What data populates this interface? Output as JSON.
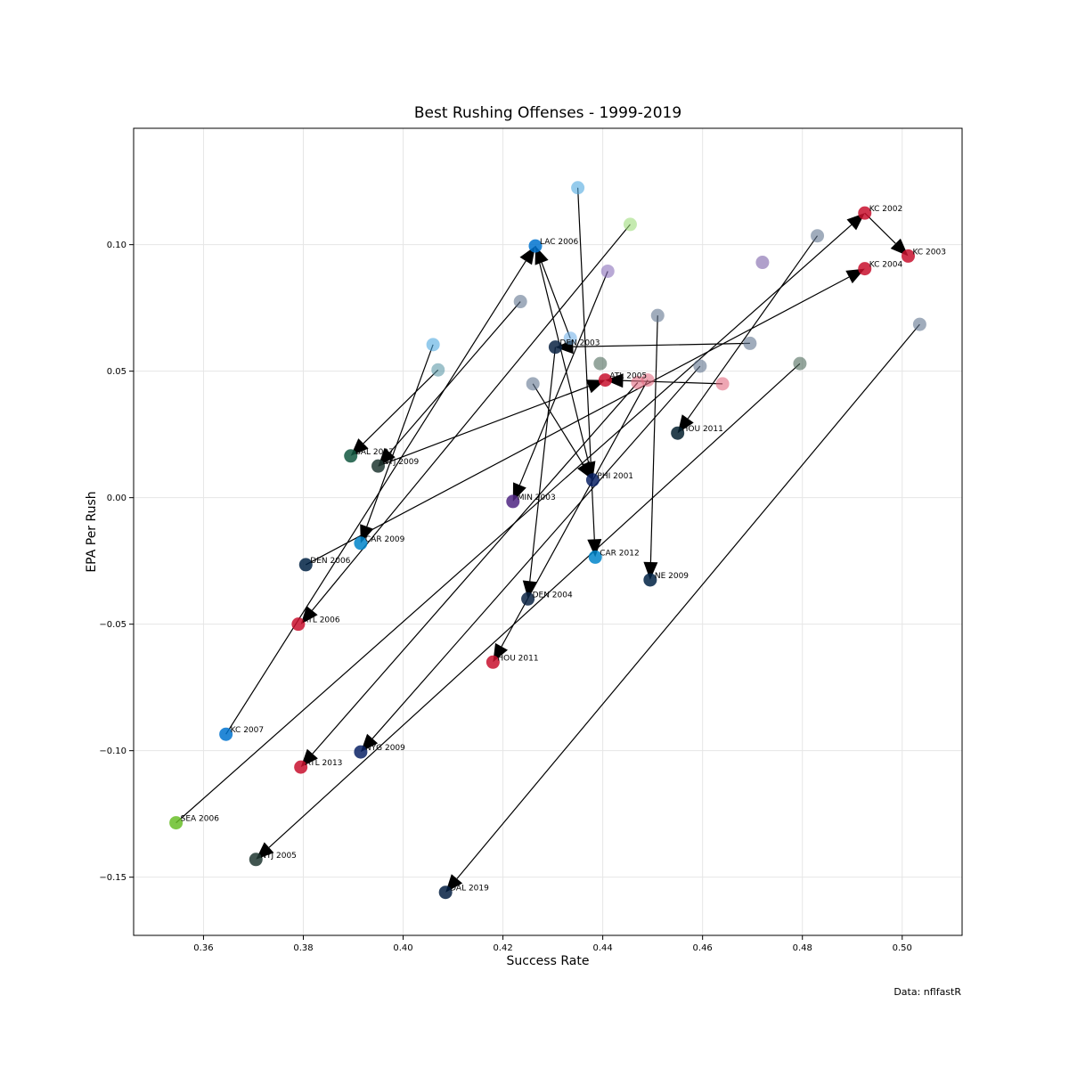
{
  "chart_data": {
    "type": "scatter",
    "title": "Best Rushing Offenses - 1999-2019",
    "xlabel": "Success Rate",
    "ylabel": "EPA Per Rush",
    "caption": "Data: nflfastR",
    "xlim": [
      0.346,
      0.512
    ],
    "ylim": [
      -0.173,
      0.146
    ],
    "xticks": [
      0.36,
      0.38,
      0.4,
      0.42,
      0.44,
      0.46,
      0.48,
      0.5
    ],
    "xtick_labels": [
      "0.36",
      "0.38",
      "0.40",
      "0.42",
      "0.44",
      "0.46",
      "0.48",
      "0.50"
    ],
    "yticks": [
      0.1,
      0.05,
      0.0,
      -0.05,
      -0.1,
      -0.15
    ],
    "ytick_labels": [
      "0.10",
      "0.05",
      "0.00",
      "−0.05",
      "−0.10",
      "−0.15"
    ],
    "grid": true,
    "points": [
      {
        "label": "KC 2002",
        "x": 0.4925,
        "y": 0.1125,
        "color": "#c8102e"
      },
      {
        "label": "KC 2003",
        "x": 0.5012,
        "y": 0.0955,
        "color": "#c8102e"
      },
      {
        "label": "KC 2004",
        "x": 0.4925,
        "y": 0.0905,
        "color": "#c8102e"
      },
      {
        "label": "LAC 2006",
        "x": 0.4265,
        "y": 0.0995,
        "color": "#0073cf"
      },
      {
        "label": "DEN 2003",
        "x": 0.4305,
        "y": 0.0595,
        "color": "#0a2343"
      },
      {
        "label": "ATL 2005",
        "x": 0.4405,
        "y": 0.0465,
        "color": "#c8102e"
      },
      {
        "label": "HOU 2011",
        "x": 0.455,
        "y": 0.0255,
        "color": "#03202f"
      },
      {
        "label": "BAL 2007",
        "x": 0.3895,
        "y": 0.0165,
        "color": "#125740"
      },
      {
        "label": "NYJ 2009",
        "x": 0.395,
        "y": 0.0125,
        "color": "#203731"
      },
      {
        "label": "PHI 2001",
        "x": 0.438,
        "y": 0.007,
        "color": "#0b2265"
      },
      {
        "label": "MIN 2003",
        "x": 0.422,
        "y": -0.0015,
        "color": "#4f2683"
      },
      {
        "label": "CAR 2009",
        "x": 0.3915,
        "y": -0.018,
        "color": "#0085ca"
      },
      {
        "label": "CAR 2012",
        "x": 0.4385,
        "y": -0.0235,
        "color": "#0085ca"
      },
      {
        "label": "DEN 2006",
        "x": 0.3805,
        "y": -0.0265,
        "color": "#002244"
      },
      {
        "label": "NE 2009",
        "x": 0.4495,
        "y": -0.0325,
        "color": "#002244"
      },
      {
        "label": "DEN 2004",
        "x": 0.425,
        "y": -0.04,
        "color": "#0a2343"
      },
      {
        "label": "ATL 2006",
        "x": 0.379,
        "y": -0.05,
        "color": "#c8102e"
      },
      {
        "label": "HOU 2011",
        "x": 0.418,
        "y": -0.065,
        "color": "#c8102e"
      },
      {
        "label": "KC 2007",
        "x": 0.3645,
        "y": -0.0935,
        "color": "#0073cf"
      },
      {
        "label": "NYG 2009",
        "x": 0.3915,
        "y": -0.1005,
        "color": "#0b2265"
      },
      {
        "label": "ATL 2013",
        "x": 0.3795,
        "y": -0.1065,
        "color": "#c8102e"
      },
      {
        "label": "SEA 2006",
        "x": 0.3545,
        "y": -0.1285,
        "color": "#69be28"
      },
      {
        "label": "NYJ 2005",
        "x": 0.3705,
        "y": -0.143,
        "color": "#203731"
      },
      {
        "label": "DAL 2019",
        "x": 0.4085,
        "y": -0.156,
        "color": "#041e42"
      },
      {
        "label": "",
        "x": 0.435,
        "y": 0.1225,
        "color": "#4fa8e0"
      },
      {
        "label": "",
        "x": 0.4455,
        "y": 0.108,
        "color": "#9fdc7c"
      },
      {
        "label": "",
        "x": 0.483,
        "y": 0.1035,
        "color": "#607590"
      },
      {
        "label": "",
        "x": 0.472,
        "y": 0.093,
        "color": "#7b61a8"
      },
      {
        "label": "",
        "x": 0.441,
        "y": 0.0895,
        "color": "#8a6fba"
      },
      {
        "label": "",
        "x": 0.4235,
        "y": 0.0775,
        "color": "#607590"
      },
      {
        "label": "",
        "x": 0.451,
        "y": 0.072,
        "color": "#607590"
      },
      {
        "label": "",
        "x": 0.5035,
        "y": 0.0685,
        "color": "#607590"
      },
      {
        "label": "",
        "x": 0.4335,
        "y": 0.063,
        "color": "#74b3e8"
      },
      {
        "label": "",
        "x": 0.4695,
        "y": 0.061,
        "color": "#607590"
      },
      {
        "label": "",
        "x": 0.406,
        "y": 0.0605,
        "color": "#4fa8e0"
      },
      {
        "label": "",
        "x": 0.4395,
        "y": 0.053,
        "color": "#4f6b5c"
      },
      {
        "label": "",
        "x": 0.4795,
        "y": 0.053,
        "color": "#4f6b5c"
      },
      {
        "label": "",
        "x": 0.4595,
        "y": 0.052,
        "color": "#607590"
      },
      {
        "label": "",
        "x": 0.407,
        "y": 0.0505,
        "color": "#5e99a8"
      },
      {
        "label": "",
        "x": 0.447,
        "y": 0.0455,
        "color": "#e36a80"
      },
      {
        "label": "",
        "x": 0.449,
        "y": 0.0465,
        "color": "#e36a80"
      },
      {
        "label": "",
        "x": 0.464,
        "y": 0.045,
        "color": "#e36a80"
      },
      {
        "label": "",
        "x": 0.426,
        "y": 0.045,
        "color": "#607590"
      }
    ],
    "arrows": [
      {
        "x1": 0.435,
        "y1": 0.1225,
        "x2": 0.4385,
        "y2": -0.0235
      },
      {
        "x1": 0.4455,
        "y1": 0.108,
        "x2": 0.3795,
        "y2": -0.05
      },
      {
        "x1": 0.483,
        "y1": 0.1035,
        "x2": 0.455,
        "y2": 0.0255
      },
      {
        "x1": 0.441,
        "y1": 0.0895,
        "x2": 0.422,
        "y2": -0.0015
      },
      {
        "x1": 0.4235,
        "y1": 0.0775,
        "x2": 0.395,
        "y2": 0.0125
      },
      {
        "x1": 0.451,
        "y1": 0.072,
        "x2": 0.4495,
        "y2": -0.0325
      },
      {
        "x1": 0.5035,
        "y1": 0.0685,
        "x2": 0.4085,
        "y2": -0.156
      },
      {
        "x1": 0.4335,
        "y1": 0.063,
        "x2": 0.4265,
        "y2": 0.0995
      },
      {
        "x1": 0.4695,
        "y1": 0.061,
        "x2": 0.4305,
        "y2": 0.0595
      },
      {
        "x1": 0.406,
        "y1": 0.0605,
        "x2": 0.3915,
        "y2": -0.018
      },
      {
        "x1": 0.407,
        "y1": 0.0505,
        "x2": 0.3895,
        "y2": 0.0165
      },
      {
        "x1": 0.4795,
        "y1": 0.053,
        "x2": 0.3705,
        "y2": -0.143
      },
      {
        "x1": 0.4595,
        "y1": 0.052,
        "x2": 0.3915,
        "y2": -0.1005
      },
      {
        "x1": 0.447,
        "y1": 0.0455,
        "x2": 0.3795,
        "y2": -0.1065
      },
      {
        "x1": 0.449,
        "y1": 0.0465,
        "x2": 0.418,
        "y2": -0.065
      },
      {
        "x1": 0.464,
        "y1": 0.045,
        "x2": 0.4405,
        "y2": 0.0465
      },
      {
        "x1": 0.426,
        "y1": 0.045,
        "x2": 0.438,
        "y2": 0.007
      },
      {
        "x1": 0.4925,
        "y1": 0.1125,
        "x2": 0.5012,
        "y2": 0.0955
      },
      {
        "x1": 0.3545,
        "y1": -0.1285,
        "x2": 0.4925,
        "y2": 0.1125
      },
      {
        "x1": 0.3805,
        "y1": -0.0265,
        "x2": 0.4925,
        "y2": 0.0905
      },
      {
        "x1": 0.3645,
        "y1": -0.0935,
        "x2": 0.4265,
        "y2": 0.0995
      },
      {
        "x1": 0.4305,
        "y1": 0.0595,
        "x2": 0.425,
        "y2": -0.04
      },
      {
        "x1": 0.395,
        "y1": 0.0125,
        "x2": 0.4405,
        "y2": 0.0465
      },
      {
        "x1": 0.4265,
        "y1": 0.0995,
        "x2": 0.438,
        "y2": 0.007
      }
    ]
  }
}
